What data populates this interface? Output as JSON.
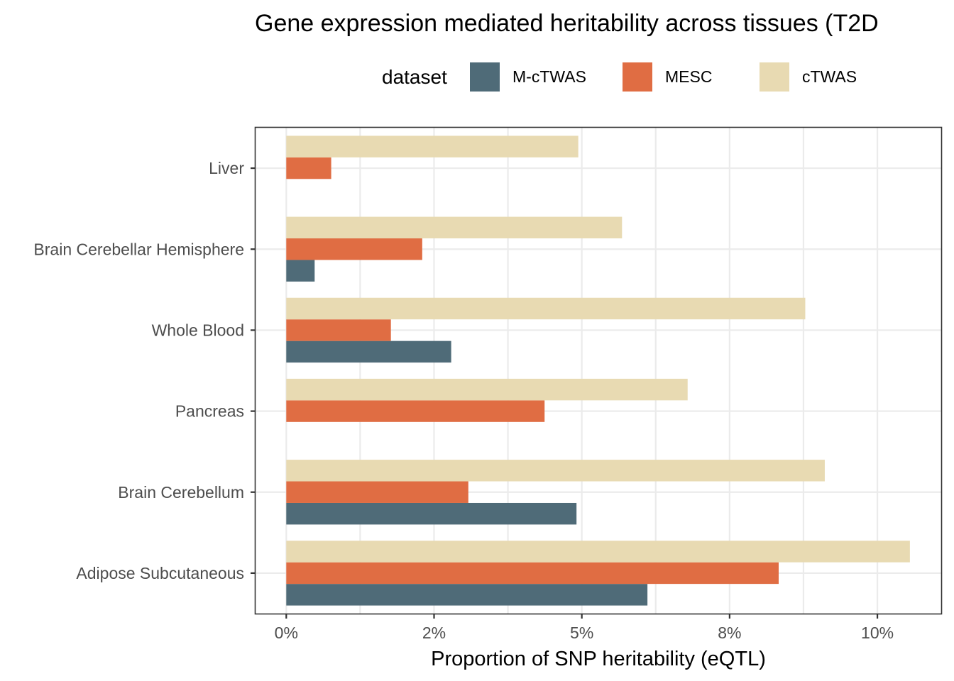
{
  "chart_data": {
    "type": "bar",
    "orientation": "horizontal",
    "title": "Gene expression mediated heritability across tissues (T2D",
    "xlabel": "Proportion of SNP heritability (eQTL)",
    "ylabel": "",
    "legend_title": "dataset",
    "legend_position": "top",
    "categories": [
      "Adipose Subcutaneous",
      "Brain Cerebellum",
      "Pancreas",
      "Whole Blood",
      "Brain Cerebellar Hemisphere",
      "Liver"
    ],
    "series": [
      {
        "name": "M-cTWAS",
        "color": "#4F6B78",
        "values": [
          0.0611,
          0.0491,
          null,
          0.0279,
          0.0048,
          null
        ]
      },
      {
        "name": "MESC",
        "color": "#E06D43",
        "values": [
          0.0833,
          0.0308,
          0.0437,
          0.0177,
          0.023,
          0.0076
        ]
      },
      {
        "name": "cTWAS",
        "color": "#E8DAB2",
        "values": [
          0.1055,
          0.0911,
          0.0679,
          0.0878,
          0.0568,
          0.0494
        ]
      }
    ],
    "xlim": [
      -0.0052,
      0.1108
    ],
    "xticks": [
      0,
      0.025,
      0.05,
      0.075,
      0.1
    ],
    "xtick_labels": [
      "0%",
      "2%",
      "5%",
      "8%",
      "10%"
    ],
    "grid": true
  }
}
